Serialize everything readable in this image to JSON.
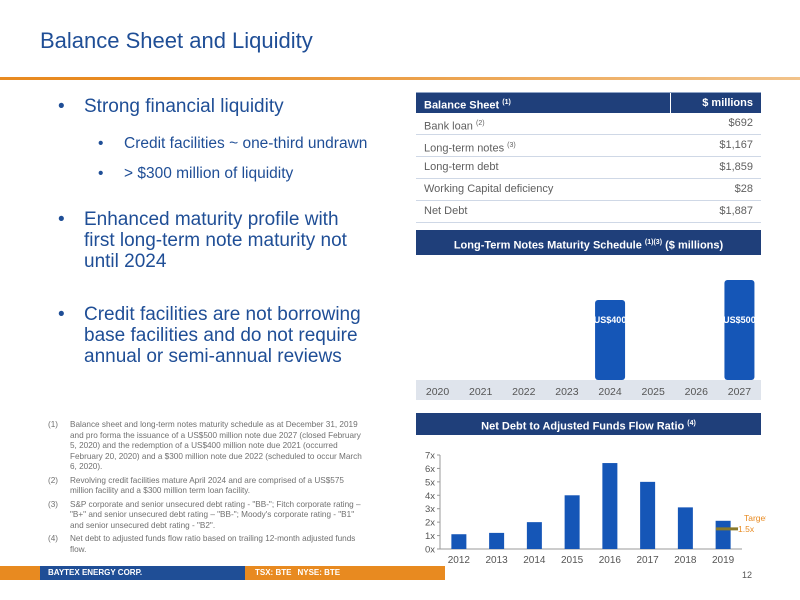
{
  "title": "Balance Sheet and Liquidity",
  "bullets": {
    "b1": "Strong financial liquidity",
    "b1_sub1": "Credit facilities ~ one-third undrawn",
    "b1_sub2": "> $300 million of liquidity",
    "b2": "Enhanced maturity profile with first long-term note maturity not until 2024",
    "b3": "Credit facilities are not borrowing base facilities and do not require annual or semi-annual reviews"
  },
  "notes": [
    {
      "num": "(1)",
      "text": "Balance sheet and long-term notes maturity schedule  as at December 31, 2019 and pro forma the issuance of a US$500 million note due 2027 (closed February 5, 2020) and the redemption of a US$400 million note due 2021 (occurred February 20, 2020) and a $300 million note due 2022 (scheduled to occur March 6, 2020)."
    },
    {
      "num": "(2)",
      "text": "Revolving credit facilities mature April 2024 and are comprised of a US$575 million facility and a $300 million term loan facility."
    },
    {
      "num": "(3)",
      "text": "S&P corporate and senior unsecured debt rating - \"BB-\"; Fitch corporate rating – \"B+\" and senior unsecured debt rating – \"BB-\"; Moody's corporate rating - \"B1\" and senior unsecured debt rating - \"B2\"."
    },
    {
      "num": "(4)",
      "text": "Net debt to adjusted funds flow ratio based on trailing 12-month adjusted funds flow."
    }
  ],
  "balance_sheet": {
    "header_label": "Balance Sheet",
    "header_sup": "(1)",
    "header_value": "$ millions",
    "rows": [
      {
        "label": "Bank loan",
        "sup": "(2)",
        "value": "$692"
      },
      {
        "label": "Long-term notes",
        "sup": "(3)",
        "value": "$1,167"
      },
      {
        "label": "Long-term debt",
        "sup": "",
        "value": "$1,859"
      },
      {
        "label": "Working Capital deficiency",
        "sup": "",
        "value": "$28"
      },
      {
        "label": "Net Debt",
        "sup": "",
        "value": "$1,887"
      }
    ]
  },
  "ltn_header": {
    "label": "Long-Term Notes Maturity Schedule",
    "sup": "(1)(3)",
    "suffix": "($ millions)"
  },
  "nd_header": {
    "label": "Net Debt to Adjusted Funds Flow Ratio",
    "sup": "(4)"
  },
  "footer": {
    "company": "BAYTEX ENERGY CORP.",
    "tsx": "TSX: BTE",
    "nyse": "NYSE: BTE",
    "page": "12"
  },
  "colors": {
    "navy": "#1f3f7a",
    "bar": "#1556b7",
    "orange": "#e88a20",
    "target": "#8a7a2a"
  },
  "chart_data": [
    {
      "type": "bar",
      "title": "Long-Term Notes Maturity Schedule (1)(3) ($ millions)",
      "categories": [
        "2020",
        "2021",
        "2022",
        "2023",
        "2024",
        "2025",
        "2026",
        "2027"
      ],
      "values": [
        0,
        0,
        0,
        0,
        400,
        0,
        0,
        500
      ],
      "data_labels": [
        "",
        "",
        "",
        "",
        "US$400",
        "",
        "",
        "US$500"
      ],
      "xlabel": "",
      "ylabel": "",
      "grid": false
    },
    {
      "type": "bar",
      "title": "Net Debt to Adjusted Funds Flow Ratio (4)",
      "categories": [
        "2012",
        "2013",
        "2014",
        "2015",
        "2016",
        "2017",
        "2018",
        "2019"
      ],
      "values": [
        1.1,
        1.2,
        2.0,
        4.0,
        6.4,
        5.0,
        3.1,
        2.1
      ],
      "yticks": [
        "0x",
        "1x",
        "2x",
        "3x",
        "4x",
        "5x",
        "6x",
        "7x"
      ],
      "ylim": [
        0,
        7
      ],
      "target": {
        "value": 1.5,
        "label_line1": "Target",
        "label_line2": "1.5x"
      },
      "xlabel": "",
      "ylabel": "",
      "grid": false
    }
  ]
}
